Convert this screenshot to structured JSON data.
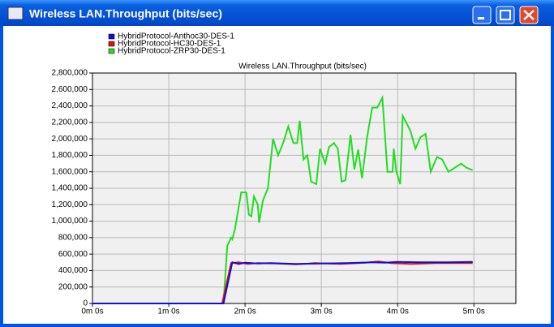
{
  "window": {
    "title": "Wireless LAN.Throughput (bits/sec)"
  },
  "chart_data": {
    "type": "line",
    "title": "Wireless LAN.Throughput (bits/sec)",
    "xlim": [
      0,
      333
    ],
    "xticks": [
      {
        "value": 0,
        "label": "0m 0s"
      },
      {
        "value": 60,
        "label": "1m 0s"
      },
      {
        "value": 120,
        "label": "2m 0s"
      },
      {
        "value": 180,
        "label": "3m 0s"
      },
      {
        "value": 240,
        "label": "4m 0s"
      },
      {
        "value": 300,
        "label": "5m 0s"
      }
    ],
    "ylim": [
      0,
      2800000
    ],
    "yticks": [
      0,
      {
        "value": 200000,
        "label": "200,000"
      },
      {
        "value": 400000,
        "label": "400,000"
      },
      {
        "value": 600000,
        "label": "600,000"
      },
      {
        "value": 800000,
        "label": "800,000"
      },
      {
        "value": 1000000,
        "label": "1,000,000"
      },
      {
        "value": 1200000,
        "label": "1,200,000"
      },
      {
        "value": 1400000,
        "label": "1,400,000"
      },
      {
        "value": 1600000,
        "label": "1,600,000"
      },
      {
        "value": 1800000,
        "label": "1,800,000"
      },
      {
        "value": 2000000,
        "label": "2,000,000"
      },
      {
        "value": 2200000,
        "label": "2,200,000"
      },
      {
        "value": 2400000,
        "label": "2,400,000"
      },
      {
        "value": 2600000,
        "label": "2,600,000"
      },
      {
        "value": 2800000,
        "label": "2,800,000"
      }
    ],
    "grid": true,
    "legend": "top-left",
    "series": [
      {
        "name": "HybridProtocol-Anthoc30-DES-1",
        "color": "#1010d0",
        "x": [
          0,
          103,
          110,
          115,
          120,
          130,
          140,
          160,
          180,
          200,
          220,
          230,
          240,
          260,
          280,
          299
        ],
        "values": [
          0,
          0,
          500000,
          480000,
          495000,
          485000,
          490000,
          480000,
          485000,
          490000,
          500000,
          495000,
          505000,
          500000,
          500000,
          505000
        ]
      },
      {
        "name": "HybridProtocol-HC30-DES-1",
        "color": "#e01010",
        "x": [
          0,
          102,
          109,
          115,
          122,
          130,
          145,
          160,
          175,
          195,
          215,
          225,
          235,
          250,
          270,
          299
        ],
        "values": [
          0,
          0,
          490000,
          500000,
          480000,
          490000,
          485000,
          475000,
          490000,
          480000,
          495000,
          510000,
          490000,
          480000,
          490000,
          490000
        ]
      },
      {
        "name": "HybridProtocol-ZRP30-DES-1",
        "color": "#22dd22",
        "x": [
          0,
          103,
          106,
          109,
          110,
          112,
          117,
          121,
          123,
          125,
          127,
          130,
          131,
          134,
          138,
          142,
          146,
          150,
          154,
          158,
          161,
          163,
          166,
          169,
          172,
          176,
          179,
          183,
          186,
          190,
          193,
          196,
          199,
          203,
          206,
          209,
          212,
          216,
          220,
          224,
          228,
          232,
          236,
          237,
          239,
          242,
          244,
          250,
          254,
          258,
          262,
          266,
          271,
          275,
          280,
          285,
          290,
          294,
          299
        ],
        "values": [
          0,
          0,
          700000,
          800000,
          780000,
          900000,
          1350000,
          1350000,
          1080000,
          1060000,
          1300000,
          1200000,
          980000,
          1250000,
          1400000,
          2000000,
          1800000,
          1950000,
          2150000,
          1950000,
          1950000,
          2220000,
          1750000,
          1800000,
          1480000,
          1450000,
          1880000,
          1700000,
          1900000,
          1950000,
          1880000,
          1480000,
          1500000,
          2050000,
          1630000,
          1870000,
          1520000,
          2020000,
          2380000,
          2380000,
          2500000,
          1600000,
          1600000,
          1880000,
          1600000,
          1450000,
          2280000,
          2100000,
          1880000,
          2020000,
          2060000,
          1600000,
          1780000,
          1750000,
          1600000,
          1650000,
          1700000,
          1650000,
          1620000
        ]
      }
    ]
  }
}
